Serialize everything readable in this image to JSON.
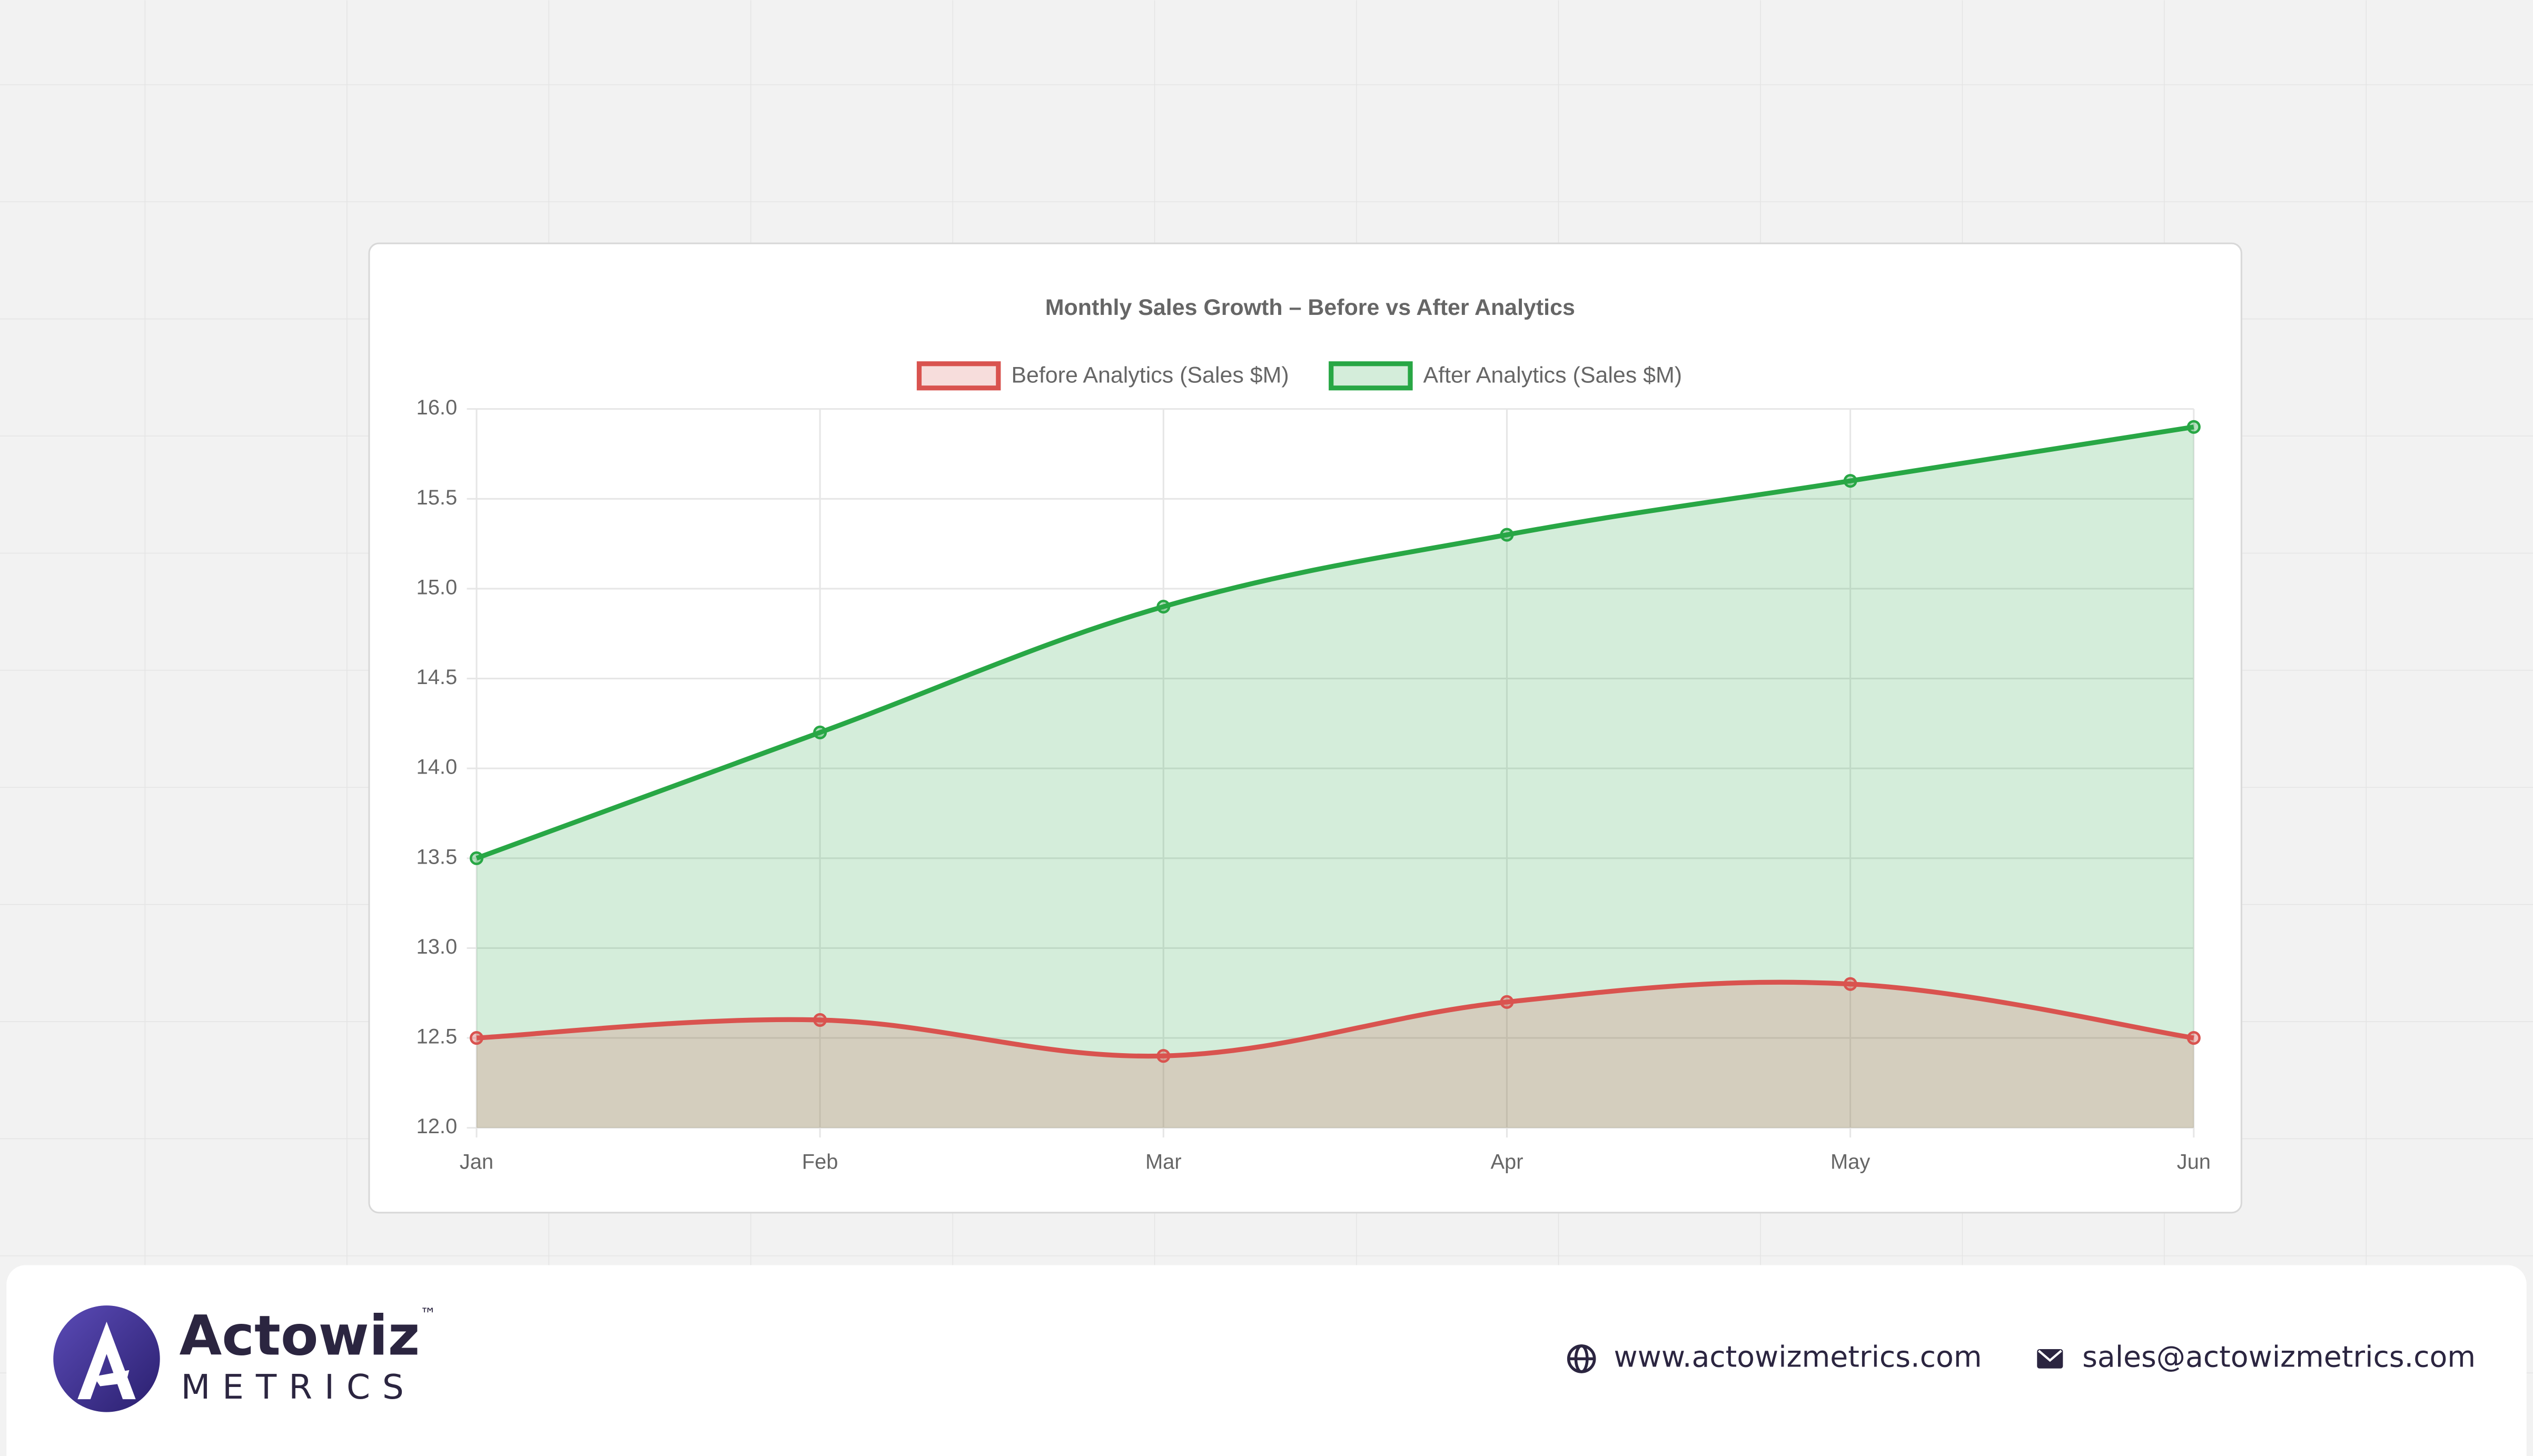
{
  "chart_data": {
    "type": "line",
    "title": "Monthly Sales Growth – Before vs After Analytics",
    "categories": [
      "Jan",
      "Feb",
      "Mar",
      "Apr",
      "May",
      "Jun"
    ],
    "series": [
      {
        "name": "Before Analytics (Sales $M)",
        "color": "#d9534f",
        "values": [
          12.5,
          12.6,
          12.4,
          12.7,
          12.8,
          12.5
        ]
      },
      {
        "name": "After Analytics (Sales $M)",
        "color": "#28a745",
        "values": [
          13.5,
          14.2,
          14.9,
          15.3,
          15.6,
          15.9
        ]
      }
    ],
    "fill": true,
    "smooth": true,
    "grid": true,
    "legend": "top",
    "ylim": [
      12,
      16
    ],
    "yticks": [
      {
        "value": 12,
        "label": "12.0"
      },
      {
        "value": 12.5,
        "label": "12.5"
      },
      {
        "value": 13,
        "label": "13.0"
      },
      {
        "value": 13.5,
        "label": "13.5"
      },
      {
        "value": 14,
        "label": "14.0"
      },
      {
        "value": 14.5,
        "label": "14.5"
      },
      {
        "value": 15,
        "label": "15.0"
      },
      {
        "value": 15.5,
        "label": "15.5"
      },
      {
        "value": 16,
        "label": "16.0"
      }
    ]
  },
  "footer": {
    "brand": "Actowiz",
    "brand_sub": "METRICS",
    "trademark": "™",
    "website": "www.actowizmetrics.com",
    "email": "sales@actowizmetrics.com"
  }
}
